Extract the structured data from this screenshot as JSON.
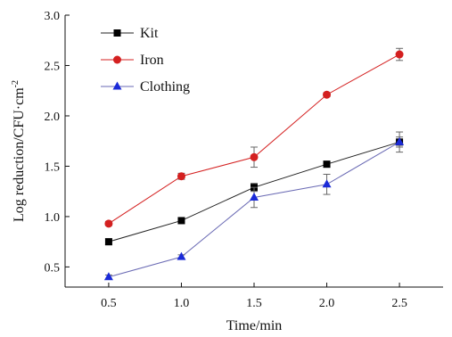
{
  "chart_data": {
    "type": "line",
    "x": [
      0.5,
      1.0,
      1.5,
      2.0,
      2.5
    ],
    "xlabel": "Time/min",
    "ylabel": "Log reduction/CFU·cm",
    "ylabel_superscript": "-2",
    "xlim": [
      0.2,
      2.8
    ],
    "ylim": [
      0.3,
      3.0
    ],
    "xticks": [
      "0.5",
      "1.0",
      "1.5",
      "2.0",
      "2.5"
    ],
    "yticks": [
      "0.5",
      "1.0",
      "1.5",
      "2.0",
      "2.5",
      "3.0"
    ],
    "grid": false,
    "legend_position": "top-left",
    "series": [
      {
        "name": "Kit",
        "color": "#000000",
        "line_color": "#222222",
        "marker": "square",
        "values": [
          0.75,
          0.96,
          1.29,
          1.52,
          1.74
        ],
        "errors": [
          0.03,
          0.03,
          0.04,
          0.03,
          0.05
        ]
      },
      {
        "name": "Iron",
        "color": "#d42020",
        "line_color": "#d42020",
        "marker": "circle",
        "values": [
          0.93,
          1.4,
          1.59,
          2.21,
          2.61
        ],
        "errors": [
          0.02,
          0.03,
          0.1,
          0.02,
          0.06
        ]
      },
      {
        "name": "Clothing",
        "color": "#1a2ad8",
        "line_color": "#6a6ab4",
        "marker": "triangle",
        "values": [
          0.4,
          0.6,
          1.19,
          1.32,
          1.74
        ],
        "errors": [
          0.02,
          0.02,
          0.1,
          0.1,
          0.1
        ]
      }
    ]
  }
}
